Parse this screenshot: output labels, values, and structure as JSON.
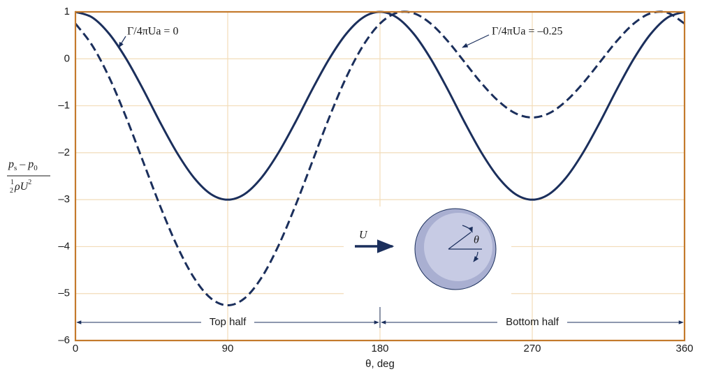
{
  "chart_data": {
    "type": "line",
    "x_label": "θ, deg",
    "y_label": {
      "numerator": [
        "p",
        "s",
        " – ",
        "p",
        "0"
      ],
      "denominator": [
        "1",
        "2",
        "ρU",
        "2"
      ]
    },
    "x": [
      0,
      10,
      20,
      30,
      40,
      50,
      60,
      70,
      80,
      90,
      100,
      110,
      120,
      130,
      140,
      150,
      160,
      170,
      180,
      190,
      200,
      210,
      220,
      230,
      240,
      250,
      260,
      270,
      280,
      290,
      300,
      310,
      320,
      330,
      340,
      350,
      360
    ],
    "series": [
      {
        "name": "Γ/4πUa = 0",
        "color": "#1b2f5c",
        "dash": false,
        "values": [
          1,
          0.88,
          0.53,
          0,
          -0.65,
          -1.35,
          -2,
          -2.53,
          -2.88,
          -3,
          -2.88,
          -2.53,
          -2,
          -1.35,
          -0.65,
          0,
          0.53,
          0.88,
          1,
          0.88,
          0.53,
          0,
          -0.65,
          -1.35,
          -2,
          -2.53,
          -2.88,
          -3,
          -2.88,
          -2.53,
          -2,
          -1.35,
          -0.65,
          0,
          0.53,
          0.88,
          1
        ]
      },
      {
        "name": "Γ/4πUa = –0.25",
        "color": "#1b2f5c",
        "dash": true,
        "values": [
          0.75,
          0.28,
          -0.4,
          -1.25,
          -2.19,
          -3.13,
          -3.98,
          -4.66,
          -5.1,
          -5.25,
          -5.1,
          -4.66,
          -3.98,
          -3.13,
          -2.19,
          -1.25,
          -0.4,
          0.28,
          0.75,
          0.98,
          0.97,
          0.75,
          0.38,
          -0.07,
          -0.52,
          -0.9,
          -1.16,
          -1.25,
          -1.16,
          -0.9,
          -0.52,
          -0.07,
          0.38,
          0.75,
          0.97,
          0.98,
          0.75
        ]
      }
    ],
    "xlim": [
      0,
      360
    ],
    "ylim": [
      -6,
      1
    ],
    "xticks": [
      0,
      90,
      180,
      270,
      360
    ],
    "yticks": [
      {
        "value": -6,
        "label": "–6"
      },
      {
        "value": -5,
        "label": "–5"
      },
      {
        "value": -4,
        "label": "–4"
      },
      {
        "value": -3,
        "label": "–3"
      },
      {
        "value": -2,
        "label": "–2"
      },
      {
        "value": -1,
        "label": "–1"
      },
      0,
      1
    ],
    "grid": true,
    "regions": [
      {
        "label": "Top half",
        "from": 0,
        "to": 180
      },
      {
        "label": "Bottom half",
        "from": 180,
        "to": 360
      }
    ],
    "inset": {
      "flow_label": "U",
      "angle_label": "θ"
    }
  }
}
